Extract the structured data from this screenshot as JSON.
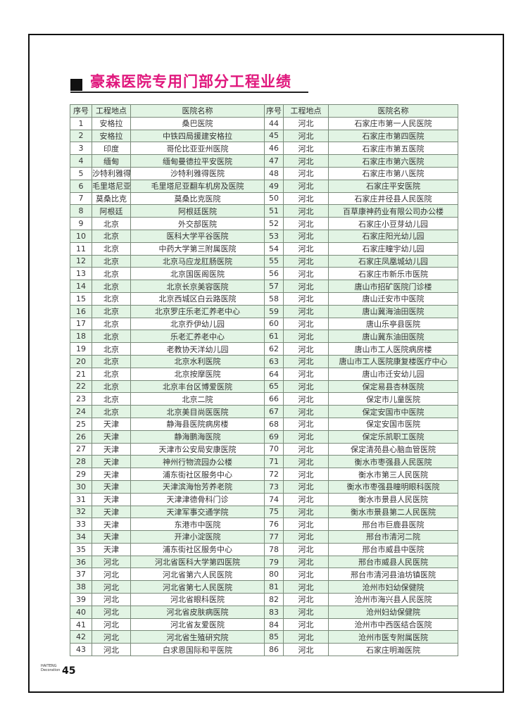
{
  "title": "豪森医院专用门部分工程业绩",
  "table": {
    "headers": [
      "序号",
      "工程地点",
      "医院名称",
      "序号",
      "工程地点",
      "医院名称"
    ],
    "left": [
      [
        "1",
        "安格拉",
        "桑巴医院"
      ],
      [
        "2",
        "安格拉",
        "中铁四局援建安格拉"
      ],
      [
        "3",
        "印度",
        "哥伦比亚亚州医院"
      ],
      [
        "4",
        "缅甸",
        "缅甸曼德拉平安医院"
      ],
      [
        "5",
        "沙特利雅得",
        "沙特利雅得医院"
      ],
      [
        "6",
        "毛里塔尼亚",
        "毛里塔尼亚翻车机房及医院"
      ],
      [
        "7",
        "莫桑比克",
        "莫桑比克医院"
      ],
      [
        "8",
        "阿根廷",
        "阿根廷医院"
      ],
      [
        "9",
        "北京",
        "外交部医院"
      ],
      [
        "10",
        "北京",
        "医科大学平谷医院"
      ],
      [
        "11",
        "北京",
        "中药大学第三附属医院"
      ],
      [
        "12",
        "北京",
        "北京马应龙肛肠医院"
      ],
      [
        "13",
        "北京",
        "北京国医阁医院"
      ],
      [
        "14",
        "北京",
        "北京长京美容医院"
      ],
      [
        "15",
        "北京",
        "北京西城区白云路医院"
      ],
      [
        "16",
        "北京",
        "北京罗庄乐老汇养老中心"
      ],
      [
        "17",
        "北京",
        "北京乔伊幼儿园"
      ],
      [
        "18",
        "北京",
        "乐老汇养老中心"
      ],
      [
        "19",
        "北京",
        "老教协天洋幼儿园"
      ],
      [
        "20",
        "北京",
        "北京水利医院"
      ],
      [
        "21",
        "北京",
        "北京按摩医院"
      ],
      [
        "22",
        "北京",
        "北京丰台区博爱医院"
      ],
      [
        "23",
        "北京",
        "北京二院"
      ],
      [
        "24",
        "北京",
        "北京美目尚医医院"
      ],
      [
        "25",
        "天津",
        "静海县医院病房楼"
      ],
      [
        "26",
        "天津",
        "静海鹏海医院"
      ],
      [
        "27",
        "天津",
        "天津市公安局安康医院"
      ],
      [
        "28",
        "天津",
        "神州行物流园办公楼"
      ],
      [
        "29",
        "天津",
        "浦东街社区服务中心"
      ],
      [
        "30",
        "天津",
        "天津滨海怡芳养老院"
      ],
      [
        "31",
        "天津",
        "天津津德骨科门诊"
      ],
      [
        "32",
        "天津",
        "天津军事交通学院"
      ],
      [
        "33",
        "天津",
        "东港市中医院"
      ],
      [
        "34",
        "天津",
        "开津小淀医院"
      ],
      [
        "35",
        "天津",
        "浦东街社区服务中心"
      ],
      [
        "36",
        "河北",
        "河北省医科大学第四医院"
      ],
      [
        "37",
        "河北",
        "河北省第六人民医院"
      ],
      [
        "38",
        "河北",
        "河北省第七人民医院"
      ],
      [
        "39",
        "河北",
        "河北省眼科医院"
      ],
      [
        "40",
        "河北",
        "河北省皮肤病医院"
      ],
      [
        "41",
        "河北",
        "河北省友爱医院"
      ],
      [
        "42",
        "河北",
        "河北省生殖研究院"
      ],
      [
        "43",
        "河北",
        "白求恩国际和平医院"
      ]
    ],
    "right": [
      [
        "44",
        "河北",
        "石家庄市第一人民医院"
      ],
      [
        "45",
        "河北",
        "石家庄市第四医院"
      ],
      [
        "46",
        "河北",
        "石家庄市第五医院"
      ],
      [
        "47",
        "河北",
        "石家庄市第六医院"
      ],
      [
        "48",
        "河北",
        "石家庄市第八医院"
      ],
      [
        "49",
        "河北",
        "石家庄平安医院"
      ],
      [
        "50",
        "河北",
        "石家庄井径县人民医院"
      ],
      [
        "51",
        "河北",
        "百草康神药业有限公司办公楼"
      ],
      [
        "52",
        "河北",
        "石家庄小豆芽幼儿园"
      ],
      [
        "53",
        "河北",
        "石家庄阳光幼儿园"
      ],
      [
        "54",
        "河北",
        "石家庄瞳宇幼儿园"
      ],
      [
        "55",
        "河北",
        "石家庄凤凰城幼儿园"
      ],
      [
        "56",
        "河北",
        "石家庄市新乐市医院"
      ],
      [
        "57",
        "河北",
        "唐山市招矿医院门诊楼"
      ],
      [
        "58",
        "河北",
        "唐山迁安市中医院"
      ],
      [
        "59",
        "河北",
        "唐山冀海油田医院"
      ],
      [
        "60",
        "河北",
        "唐山乐亭县医院"
      ],
      [
        "61",
        "河北",
        "唐山冀东油田医院"
      ],
      [
        "62",
        "河北",
        "唐山市工人医院病房楼"
      ],
      [
        "63",
        "河北",
        "唐山市工人医院康复楼医疗中心"
      ],
      [
        "64",
        "河北",
        "唐山市迁安幼儿园"
      ],
      [
        "65",
        "河北",
        "保定易县杏林医院"
      ],
      [
        "66",
        "河北",
        "保定市儿童医院"
      ],
      [
        "67",
        "河北",
        "保定安国市中医院"
      ],
      [
        "68",
        "河北",
        "保定安国市医院"
      ],
      [
        "69",
        "河北",
        "保定乐凯职工医院"
      ],
      [
        "70",
        "河北",
        "保定清苑县心脑血管医院"
      ],
      [
        "71",
        "河北",
        "衡水市枣强县人民医院"
      ],
      [
        "72",
        "河北",
        "衡水市第三人民医院"
      ],
      [
        "73",
        "河北",
        "衡水市枣强县瞳明眼科医院"
      ],
      [
        "74",
        "河北",
        "衡水市景县人民医院"
      ],
      [
        "75",
        "河北",
        "衡水市景县第二人民医院"
      ],
      [
        "76",
        "河北",
        "邢台市巨鹿县医院"
      ],
      [
        "77",
        "河北",
        "邢台市清河二院"
      ],
      [
        "78",
        "河北",
        "邢台市威县中医院"
      ],
      [
        "79",
        "河北",
        "邢台市威县人民医院"
      ],
      [
        "80",
        "河北",
        "邢台市清河县油坊镇医院"
      ],
      [
        "81",
        "河北",
        "沧州市妇幼保健院"
      ],
      [
        "82",
        "河北",
        "沧州市海兴县人民医院"
      ],
      [
        "83",
        "河北",
        "沧州妇幼保健院"
      ],
      [
        "84",
        "河北",
        "沧州市中西医结合医院"
      ],
      [
        "85",
        "河北",
        "沧州市医专附属医院"
      ],
      [
        "86",
        "河北",
        "石家庄明瀚医院"
      ]
    ]
  },
  "footer": {
    "brand_line1": "HAITENG",
    "brand_line2": "Decoration",
    "page_number": "45"
  },
  "colors": {
    "title": "#e0187d",
    "row_alt": "#e2f4e4"
  }
}
